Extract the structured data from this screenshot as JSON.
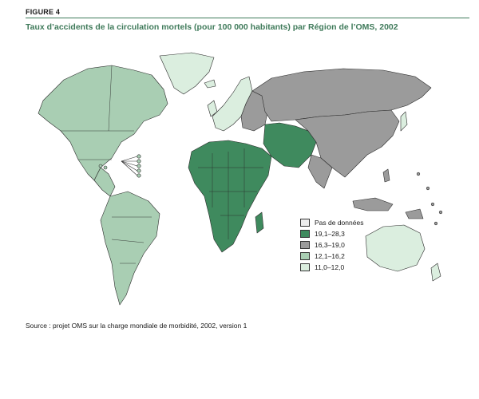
{
  "figure": {
    "label": "FIGURE 4",
    "title": "Taux d’accidents de la circulation mortels (pour 100 000 habitants) par Région de l’OMS, 2002"
  },
  "colors": {
    "no_data": "#ececec",
    "range_high": "#3f8a5e",
    "range_mid": "#9b9b9b",
    "range_low": "#a9ceb3",
    "range_lowest": "#dbeedf",
    "border": "#2b2b2b",
    "accent": "#3f7a5a"
  },
  "legend": {
    "items": [
      {
        "label": "Pas de données",
        "color": "#ececec"
      },
      {
        "label": "19,1–28,3",
        "color": "#3f8a5e"
      },
      {
        "label": "16,3–19,0",
        "color": "#9b9b9b"
      },
      {
        "label": "12,1–16,2",
        "color": "#a9ceb3"
      },
      {
        "label": "11,0–12,0",
        "color": "#dbeedf"
      }
    ]
  },
  "source": "Source : projet OMS sur la charge mondiale de morbidité, 2002, version 1"
}
